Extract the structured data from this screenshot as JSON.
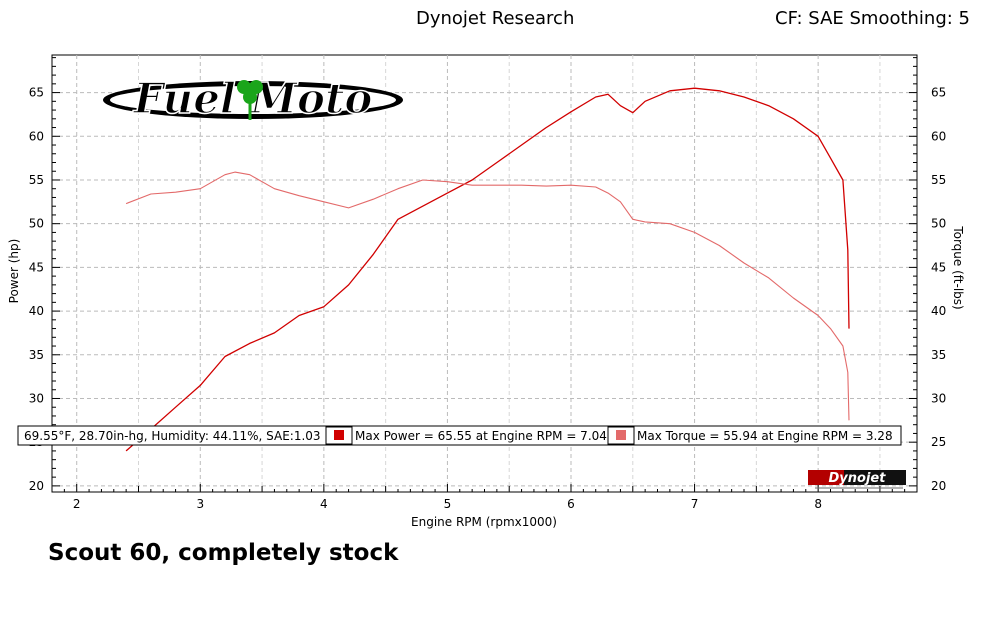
{
  "header": {
    "title": "Dynojet Research",
    "cf": "CF: SAE Smoothing: 5"
  },
  "logo": {
    "text": "Fuel Moto"
  },
  "brand": {
    "text": "Dynojet"
  },
  "caption": "Scout 60, completely stock",
  "legend": {
    "conditions": "69.55°F, 28.70in-hg, Humidity: 44.11%, SAE:1.03",
    "power": "Max Power = 65.55 at Engine RPM = 7.04",
    "torque": "Max Torque = 55.94 at Engine RPM = 3.28"
  },
  "colors": {
    "power": "#d10000",
    "torque": "#e36a6a"
  },
  "chart_data": {
    "type": "line",
    "xlabel": "Engine RPM (rpmx1000)",
    "ylabel": "Power (hp)",
    "y2label": "Torque (ft-lbs)",
    "xlim": [
      1.8,
      8.8
    ],
    "ylim": [
      19.3,
      69.3
    ],
    "xticks": [
      "2",
      "3",
      "4",
      "5",
      "6",
      "7",
      "8"
    ],
    "yticks": [
      "20",
      "25",
      "30",
      "35",
      "40",
      "45",
      "50",
      "55",
      "60",
      "65"
    ],
    "grid": true,
    "series": [
      {
        "name": "Power",
        "axis": "left",
        "x": [
          2.4,
          2.6,
          2.8,
          3.0,
          3.2,
          3.4,
          3.6,
          3.8,
          4.0,
          4.2,
          4.4,
          4.6,
          4.8,
          5.0,
          5.2,
          5.4,
          5.6,
          5.8,
          6.0,
          6.2,
          6.3,
          6.4,
          6.5,
          6.6,
          6.8,
          7.0,
          7.2,
          7.4,
          7.6,
          7.8,
          8.0,
          8.1,
          8.2,
          8.24,
          8.25
        ],
        "values": [
          24.0,
          26.5,
          29.0,
          31.5,
          34.8,
          36.3,
          37.5,
          39.5,
          40.5,
          43.0,
          46.5,
          50.5,
          52.0,
          53.5,
          55.0,
          57.0,
          59.0,
          61.0,
          62.8,
          64.5,
          64.8,
          63.5,
          62.7,
          64.0,
          65.2,
          65.5,
          65.2,
          64.5,
          63.5,
          62.0,
          60.0,
          57.5,
          55.0,
          47.0,
          38.0
        ]
      },
      {
        "name": "Torque",
        "axis": "right",
        "x": [
          2.4,
          2.6,
          2.8,
          3.0,
          3.2,
          3.28,
          3.4,
          3.6,
          3.8,
          4.0,
          4.2,
          4.4,
          4.6,
          4.8,
          5.0,
          5.2,
          5.4,
          5.6,
          5.8,
          6.0,
          6.2,
          6.3,
          6.4,
          6.5,
          6.6,
          6.8,
          7.0,
          7.2,
          7.4,
          7.6,
          7.8,
          8.0,
          8.1,
          8.2,
          8.24,
          8.25
        ],
        "values": [
          52.3,
          53.4,
          53.6,
          54.0,
          55.6,
          55.9,
          55.6,
          54.0,
          53.2,
          52.5,
          51.8,
          52.8,
          54.0,
          55.0,
          54.8,
          54.4,
          54.4,
          54.4,
          54.3,
          54.4,
          54.2,
          53.5,
          52.5,
          50.5,
          50.2,
          50.0,
          49.0,
          47.5,
          45.5,
          43.8,
          41.5,
          39.5,
          38.0,
          36.0,
          33.0,
          27.5
        ]
      }
    ]
  }
}
